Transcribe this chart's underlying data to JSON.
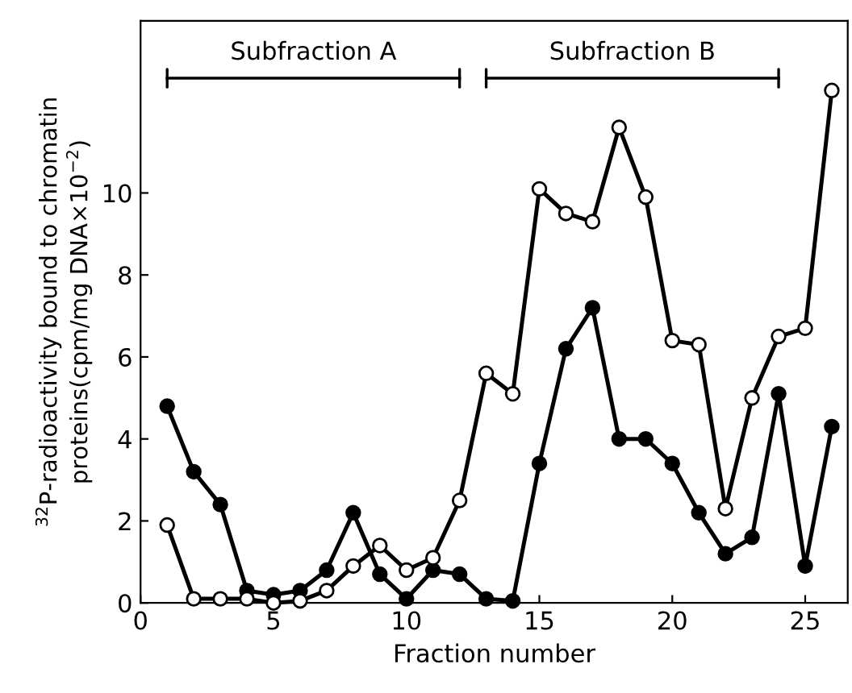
{
  "chart_data": {
    "type": "line",
    "xlabel": "Fraction number",
    "ylabel": "$^{32}$P-radioactivity bound to chromatin\nproteins(cpm/mg DNA×10$^{−2}$)",
    "x": [
      1,
      2,
      3,
      4,
      5,
      6,
      7,
      8,
      9,
      10,
      11,
      12,
      13,
      14,
      15,
      16,
      17,
      18,
      19,
      20,
      21,
      22,
      23,
      24,
      25,
      26
    ],
    "series": [
      {
        "color": "#000000",
        "values": [
          4.8,
          3.2,
          2.4,
          0.3,
          0.2,
          0.3,
          0.8,
          2.2,
          0.7,
          0.1,
          0.8,
          0.7,
          0.1,
          0.05,
          3.4,
          6.2,
          7.2,
          4.0,
          4.0,
          3.4,
          2.2,
          1.2,
          1.6,
          5.1,
          0.9,
          4.3
        ]
      },
      {
        "color": "#000000",
        "values": [
          1.9,
          0.1,
          0.1,
          0.1,
          0.0,
          0.05,
          0.3,
          0.9,
          1.4,
          0.8,
          1.1,
          2.5,
          5.6,
          5.1,
          10.1,
          9.5,
          9.3,
          11.6,
          9.9,
          6.4,
          6.3,
          2.3,
          5.0,
          6.5,
          6.7,
          12.5
        ]
      },
      {
        "name": "Subfraction A",
        "color": "#000000",
        "marker": "none",
        "x": [
          1,
          12
        ],
        "values": [
          12.8,
          12.8
        ]
      },
      {
        "name": "Subfraction B",
        "color": "#000000",
        "marker": "none",
        "x": [
          13,
          24
        ],
        "values": [
          12.8,
          12.8
        ]
      }
    ],
    "xlim": [
      0,
      26.6
    ],
    "ylim": [
      0,
      14.2
    ],
    "xticks": [
      0,
      5,
      10,
      15,
      20,
      25
    ],
    "yticks": [
      0,
      2,
      4,
      6,
      8,
      10
    ],
    "marker": "circle",
    "line_style": "solid",
    "grid": false,
    "legend": false
  }
}
